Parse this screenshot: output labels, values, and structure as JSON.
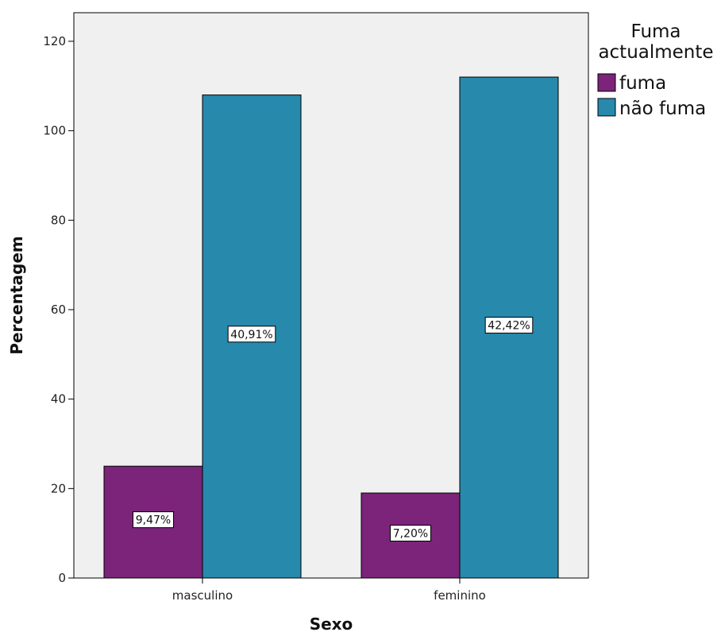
{
  "chart_data": {
    "type": "bar",
    "xlabel": "Sexo",
    "ylabel": "Percentagem",
    "ylim": [
      0,
      120
    ],
    "yticks": [
      0,
      20,
      40,
      60,
      80,
      100,
      120
    ],
    "grid": false,
    "legend_position": "right",
    "categories": [
      "masculino",
      "feminino"
    ],
    "series": [
      {
        "name": "fuma",
        "color": "#7b2479",
        "values": [
          25,
          19
        ],
        "labels": [
          "9,47%",
          "7,20%"
        ]
      },
      {
        "name": "não fuma",
        "color": "#2789ac",
        "values": [
          108,
          112
        ],
        "labels": [
          "40,91%",
          "42,42%"
        ]
      }
    ],
    "legend_title": [
      "Fuma",
      "actualmente"
    ]
  },
  "colors": {
    "plot_background": "#f0f0f0",
    "fuma": "#7b2479",
    "nao_fuma": "#2789ac"
  }
}
